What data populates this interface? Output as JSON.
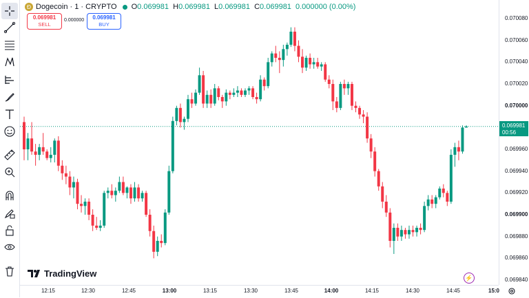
{
  "header": {
    "coin_glyph": "Ɖ",
    "symbol": "Dogecoin · 1 · CRYPTO",
    "ohlc": {
      "o_label": "O",
      "o": "0.069981",
      "h_label": "H",
      "h": "0.069981",
      "l_label": "L",
      "l": "0.069981",
      "c_label": "C",
      "c": "0.069981",
      "change": "0.000000 (0.00%)"
    }
  },
  "trade": {
    "sell_price": "0.069981",
    "sell_label": "SELL",
    "spread": "0.000000",
    "buy_price": "0.069981",
    "buy_label": "BUY"
  },
  "price_scale": {
    "labels": [
      "0.070080",
      "0.070060",
      "0.070040",
      "0.070020",
      "0.070000",
      "0.069960",
      "0.069940",
      "0.069920",
      "0.069900",
      "0.069880",
      "0.069860",
      "0.069840"
    ],
    "bold": [
      "0.070000",
      "0.069900"
    ],
    "last_price": "0.069981",
    "countdown": "00:56"
  },
  "time_scale": {
    "labels": [
      "12:15",
      "12:30",
      "12:45",
      "13:00",
      "13:15",
      "13:30",
      "13:45",
      "14:00",
      "14:15",
      "14:30",
      "14:45",
      "15:0"
    ],
    "bold": [
      "13:00",
      "14:00",
      "15:0"
    ]
  },
  "logo_text": "TradingView",
  "colors": {
    "up": "#089981",
    "down": "#f23645",
    "sell": "#f23645",
    "buy": "#2962ff"
  },
  "toolbar_icons": [
    "crosshair-icon",
    "trendline-icon",
    "fib-icon",
    "pattern-icon",
    "forecast-icon",
    "brush-icon",
    "text-icon",
    "emoji-icon",
    "ruler-icon",
    "zoom-in-icon",
    "magnet-icon",
    "lock-drawing-icon",
    "lock-icon",
    "eye-icon",
    "trash-icon"
  ],
  "chart_data": {
    "type": "candlestick",
    "interval": "1 minute",
    "ylim": [
      0.06984,
      0.07009
    ],
    "candles": [
      {
        "o": 0.069985,
        "h": 0.06999,
        "l": 0.06995,
        "c": 0.06996
      },
      {
        "o": 0.06996,
        "h": 0.069975,
        "l": 0.06995,
        "c": 0.06997
      },
      {
        "o": 0.06997,
        "h": 0.069985,
        "l": 0.069955,
        "c": 0.069958
      },
      {
        "o": 0.069958,
        "h": 0.069965,
        "l": 0.069945,
        "c": 0.069955
      },
      {
        "o": 0.069955,
        "h": 0.069965,
        "l": 0.06995,
        "c": 0.069962
      },
      {
        "o": 0.069962,
        "h": 0.069975,
        "l": 0.069955,
        "c": 0.069958
      },
      {
        "o": 0.069958,
        "h": 0.06996,
        "l": 0.06995,
        "c": 0.069952
      },
      {
        "o": 0.069952,
        "h": 0.069962,
        "l": 0.069948,
        "c": 0.069955
      },
      {
        "o": 0.069955,
        "h": 0.06997,
        "l": 0.069948,
        "c": 0.069968
      },
      {
        "o": 0.069968,
        "h": 0.069972,
        "l": 0.06994,
        "c": 0.069945
      },
      {
        "o": 0.069945,
        "h": 0.06995,
        "l": 0.069932,
        "c": 0.069938
      },
      {
        "o": 0.069938,
        "h": 0.069945,
        "l": 0.069928,
        "c": 0.069935
      },
      {
        "o": 0.069935,
        "h": 0.06994,
        "l": 0.069918,
        "c": 0.069925
      },
      {
        "o": 0.069925,
        "h": 0.069935,
        "l": 0.069915,
        "c": 0.06993
      },
      {
        "o": 0.06993,
        "h": 0.069933,
        "l": 0.069905,
        "c": 0.06991
      },
      {
        "o": 0.06991,
        "h": 0.069918,
        "l": 0.069902,
        "c": 0.069908
      },
      {
        "o": 0.069908,
        "h": 0.069915,
        "l": 0.0699,
        "c": 0.069912
      },
      {
        "o": 0.069912,
        "h": 0.069915,
        "l": 0.069895,
        "c": 0.0699
      },
      {
        "o": 0.0699,
        "h": 0.069905,
        "l": 0.069885,
        "c": 0.06989
      },
      {
        "o": 0.06989,
        "h": 0.069898,
        "l": 0.069886,
        "c": 0.069888
      },
      {
        "o": 0.069888,
        "h": 0.069895,
        "l": 0.069885,
        "c": 0.06989
      },
      {
        "o": 0.06989,
        "h": 0.069922,
        "l": 0.069888,
        "c": 0.06992
      },
      {
        "o": 0.06992,
        "h": 0.069925,
        "l": 0.069915,
        "c": 0.069922
      },
      {
        "o": 0.069922,
        "h": 0.069928,
        "l": 0.069915,
        "c": 0.069918
      },
      {
        "o": 0.069918,
        "h": 0.069925,
        "l": 0.069912,
        "c": 0.069922
      },
      {
        "o": 0.069922,
        "h": 0.069935,
        "l": 0.06992,
        "c": 0.06993
      },
      {
        "o": 0.06993,
        "h": 0.069935,
        "l": 0.069918,
        "c": 0.06992
      },
      {
        "o": 0.06992,
        "h": 0.069926,
        "l": 0.069915,
        "c": 0.069925
      },
      {
        "o": 0.069925,
        "h": 0.069928,
        "l": 0.06991,
        "c": 0.069915
      },
      {
        "o": 0.069915,
        "h": 0.06993,
        "l": 0.069912,
        "c": 0.069925
      },
      {
        "o": 0.069925,
        "h": 0.069928,
        "l": 0.069912,
        "c": 0.069915
      },
      {
        "o": 0.069915,
        "h": 0.069922,
        "l": 0.069912,
        "c": 0.06992
      },
      {
        "o": 0.06992,
        "h": 0.069922,
        "l": 0.069898,
        "c": 0.0699
      },
      {
        "o": 0.0699,
        "h": 0.069905,
        "l": 0.06988,
        "c": 0.069885
      },
      {
        "o": 0.069885,
        "h": 0.06989,
        "l": 0.06986,
        "c": 0.069866
      },
      {
        "o": 0.069866,
        "h": 0.06988,
        "l": 0.069862,
        "c": 0.069876
      },
      {
        "o": 0.069876,
        "h": 0.069882,
        "l": 0.06987,
        "c": 0.069874
      },
      {
        "o": 0.069874,
        "h": 0.069905,
        "l": 0.069872,
        "c": 0.069902
      },
      {
        "o": 0.069902,
        "h": 0.069945,
        "l": 0.0699,
        "c": 0.06994
      },
      {
        "o": 0.06994,
        "h": 0.06999,
        "l": 0.069938,
        "c": 0.069986
      },
      {
        "o": 0.069986,
        "h": 0.07,
        "l": 0.069982,
        "c": 0.069998
      },
      {
        "o": 0.069998,
        "h": 0.070002,
        "l": 0.06998,
        "c": 0.069985
      },
      {
        "o": 0.069985,
        "h": 0.06999,
        "l": 0.069978,
        "c": 0.069988
      },
      {
        "o": 0.069988,
        "h": 0.07001,
        "l": 0.069985,
        "c": 0.070006
      },
      {
        "o": 0.070006,
        "h": 0.070012,
        "l": 0.069998,
        "c": 0.070002
      },
      {
        "o": 0.070002,
        "h": 0.070015,
        "l": 0.07,
        "c": 0.070012
      },
      {
        "o": 0.070012,
        "h": 0.070035,
        "l": 0.07001,
        "c": 0.070028
      },
      {
        "o": 0.070028,
        "h": 0.070032,
        "l": 0.069998,
        "c": 0.070002
      },
      {
        "o": 0.070002,
        "h": 0.070014,
        "l": 0.069998,
        "c": 0.07001
      },
      {
        "o": 0.07001,
        "h": 0.070015,
        "l": 0.069998,
        "c": 0.070002
      },
      {
        "o": 0.070002,
        "h": 0.07002,
        "l": 0.07,
        "c": 0.070016
      },
      {
        "o": 0.070016,
        "h": 0.070018,
        "l": 0.070005,
        "c": 0.070008
      },
      {
        "o": 0.070008,
        "h": 0.07001,
        "l": 0.069998,
        "c": 0.070004
      },
      {
        "o": 0.070004,
        "h": 0.070015,
        "l": 0.07,
        "c": 0.070012
      },
      {
        "o": 0.070012,
        "h": 0.070014,
        "l": 0.070006,
        "c": 0.07001
      },
      {
        "o": 0.07001,
        "h": 0.070016,
        "l": 0.070008,
        "c": 0.070012
      },
      {
        "o": 0.070012,
        "h": 0.070018,
        "l": 0.070008,
        "c": 0.070014
      },
      {
        "o": 0.070014,
        "h": 0.070016,
        "l": 0.070008,
        "c": 0.07001
      },
      {
        "o": 0.07001,
        "h": 0.070016,
        "l": 0.070008,
        "c": 0.070014
      },
      {
        "o": 0.070014,
        "h": 0.070018,
        "l": 0.07001,
        "c": 0.070016
      },
      {
        "o": 0.070016,
        "h": 0.070018,
        "l": 0.070006,
        "c": 0.070008
      },
      {
        "o": 0.070008,
        "h": 0.070012,
        "l": 0.070002,
        "c": 0.070006
      },
      {
        "o": 0.070006,
        "h": 0.070028,
        "l": 0.070004,
        "c": 0.070024
      },
      {
        "o": 0.070024,
        "h": 0.070026,
        "l": 0.070014,
        "c": 0.070018
      },
      {
        "o": 0.070018,
        "h": 0.070044,
        "l": 0.070016,
        "c": 0.07004
      },
      {
        "o": 0.07004,
        "h": 0.07005,
        "l": 0.070036,
        "c": 0.070048
      },
      {
        "o": 0.070048,
        "h": 0.070055,
        "l": 0.07004,
        "c": 0.070044
      },
      {
        "o": 0.070044,
        "h": 0.07005,
        "l": 0.07003,
        "c": 0.070042
      },
      {
        "o": 0.070042,
        "h": 0.070056,
        "l": 0.070036,
        "c": 0.070052
      },
      {
        "o": 0.070052,
        "h": 0.070058,
        "l": 0.070046,
        "c": 0.070056
      },
      {
        "o": 0.070056,
        "h": 0.070072,
        "l": 0.070054,
        "c": 0.070068
      },
      {
        "o": 0.070068,
        "h": 0.070072,
        "l": 0.07005,
        "c": 0.070055
      },
      {
        "o": 0.070055,
        "h": 0.07006,
        "l": 0.07004,
        "c": 0.070045
      },
      {
        "o": 0.070045,
        "h": 0.070052,
        "l": 0.07003,
        "c": 0.070035
      },
      {
        "o": 0.070035,
        "h": 0.070046,
        "l": 0.070032,
        "c": 0.070044
      },
      {
        "o": 0.070044,
        "h": 0.070048,
        "l": 0.070034,
        "c": 0.070038
      },
      {
        "o": 0.070038,
        "h": 0.070044,
        "l": 0.070034,
        "c": 0.07004
      },
      {
        "o": 0.07004,
        "h": 0.070044,
        "l": 0.070034,
        "c": 0.070036
      },
      {
        "o": 0.070036,
        "h": 0.07004,
        "l": 0.070032,
        "c": 0.070038
      },
      {
        "o": 0.070038,
        "h": 0.07004,
        "l": 0.070022,
        "c": 0.070024
      },
      {
        "o": 0.070024,
        "h": 0.070028,
        "l": 0.070016,
        "c": 0.07002
      },
      {
        "o": 0.07002,
        "h": 0.070024,
        "l": 0.069996,
        "c": 0.070004
      },
      {
        "o": 0.070004,
        "h": 0.070008,
        "l": 0.069994,
        "c": 0.069998
      },
      {
        "o": 0.069998,
        "h": 0.070022,
        "l": 0.069996,
        "c": 0.07002
      },
      {
        "o": 0.07002,
        "h": 0.070024,
        "l": 0.07001,
        "c": 0.070016
      },
      {
        "o": 0.070016,
        "h": 0.070022,
        "l": 0.07001,
        "c": 0.07002
      },
      {
        "o": 0.07002,
        "h": 0.070022,
        "l": 0.069996,
        "c": 0.07
      },
      {
        "o": 0.07,
        "h": 0.070004,
        "l": 0.069994,
        "c": 0.069998
      },
      {
        "o": 0.069998,
        "h": 0.07,
        "l": 0.069988,
        "c": 0.069992
      },
      {
        "o": 0.069992,
        "h": 0.069996,
        "l": 0.069984,
        "c": 0.06999
      },
      {
        "o": 0.06999,
        "h": 0.069994,
        "l": 0.069966,
        "c": 0.06997
      },
      {
        "o": 0.06997,
        "h": 0.069974,
        "l": 0.069952,
        "c": 0.069958
      },
      {
        "o": 0.069958,
        "h": 0.069962,
        "l": 0.069935,
        "c": 0.06994
      },
      {
        "o": 0.06994,
        "h": 0.069942,
        "l": 0.069922,
        "c": 0.069926
      },
      {
        "o": 0.069926,
        "h": 0.06993,
        "l": 0.069906,
        "c": 0.069912
      },
      {
        "o": 0.069912,
        "h": 0.069918,
        "l": 0.069898,
        "c": 0.069902
      },
      {
        "o": 0.069902,
        "h": 0.069906,
        "l": 0.06987,
        "c": 0.069876
      },
      {
        "o": 0.069876,
        "h": 0.069892,
        "l": 0.069864,
        "c": 0.069888
      },
      {
        "o": 0.069888,
        "h": 0.069892,
        "l": 0.069876,
        "c": 0.06988
      },
      {
        "o": 0.06988,
        "h": 0.06989,
        "l": 0.069876,
        "c": 0.069886
      },
      {
        "o": 0.069886,
        "h": 0.069888,
        "l": 0.069878,
        "c": 0.069882
      },
      {
        "o": 0.069882,
        "h": 0.06989,
        "l": 0.069878,
        "c": 0.069886
      },
      {
        "o": 0.069886,
        "h": 0.06989,
        "l": 0.06988,
        "c": 0.069884
      },
      {
        "o": 0.069884,
        "h": 0.06989,
        "l": 0.06988,
        "c": 0.069888
      },
      {
        "o": 0.069888,
        "h": 0.069892,
        "l": 0.069882,
        "c": 0.069886
      },
      {
        "o": 0.069886,
        "h": 0.069912,
        "l": 0.069884,
        "c": 0.069908
      },
      {
        "o": 0.069908,
        "h": 0.069918,
        "l": 0.069904,
        "c": 0.069914
      },
      {
        "o": 0.069914,
        "h": 0.069918,
        "l": 0.069906,
        "c": 0.06991
      },
      {
        "o": 0.06991,
        "h": 0.069918,
        "l": 0.069906,
        "c": 0.069916
      },
      {
        "o": 0.069916,
        "h": 0.069926,
        "l": 0.069914,
        "c": 0.069924
      },
      {
        "o": 0.069924,
        "h": 0.069928,
        "l": 0.069916,
        "c": 0.06992
      },
      {
        "o": 0.06992,
        "h": 0.069922,
        "l": 0.069908,
        "c": 0.069912
      },
      {
        "o": 0.069912,
        "h": 0.06996,
        "l": 0.06991,
        "c": 0.069955
      },
      {
        "o": 0.069955,
        "h": 0.069966,
        "l": 0.069944,
        "c": 0.069962
      },
      {
        "o": 0.069962,
        "h": 0.069968,
        "l": 0.06995,
        "c": 0.069958
      },
      {
        "o": 0.069958,
        "h": 0.069982,
        "l": 0.069956,
        "c": 0.06998
      },
      {
        "o": 0.06998,
        "h": 0.069982,
        "l": 0.06998,
        "c": 0.069981
      }
    ]
  }
}
